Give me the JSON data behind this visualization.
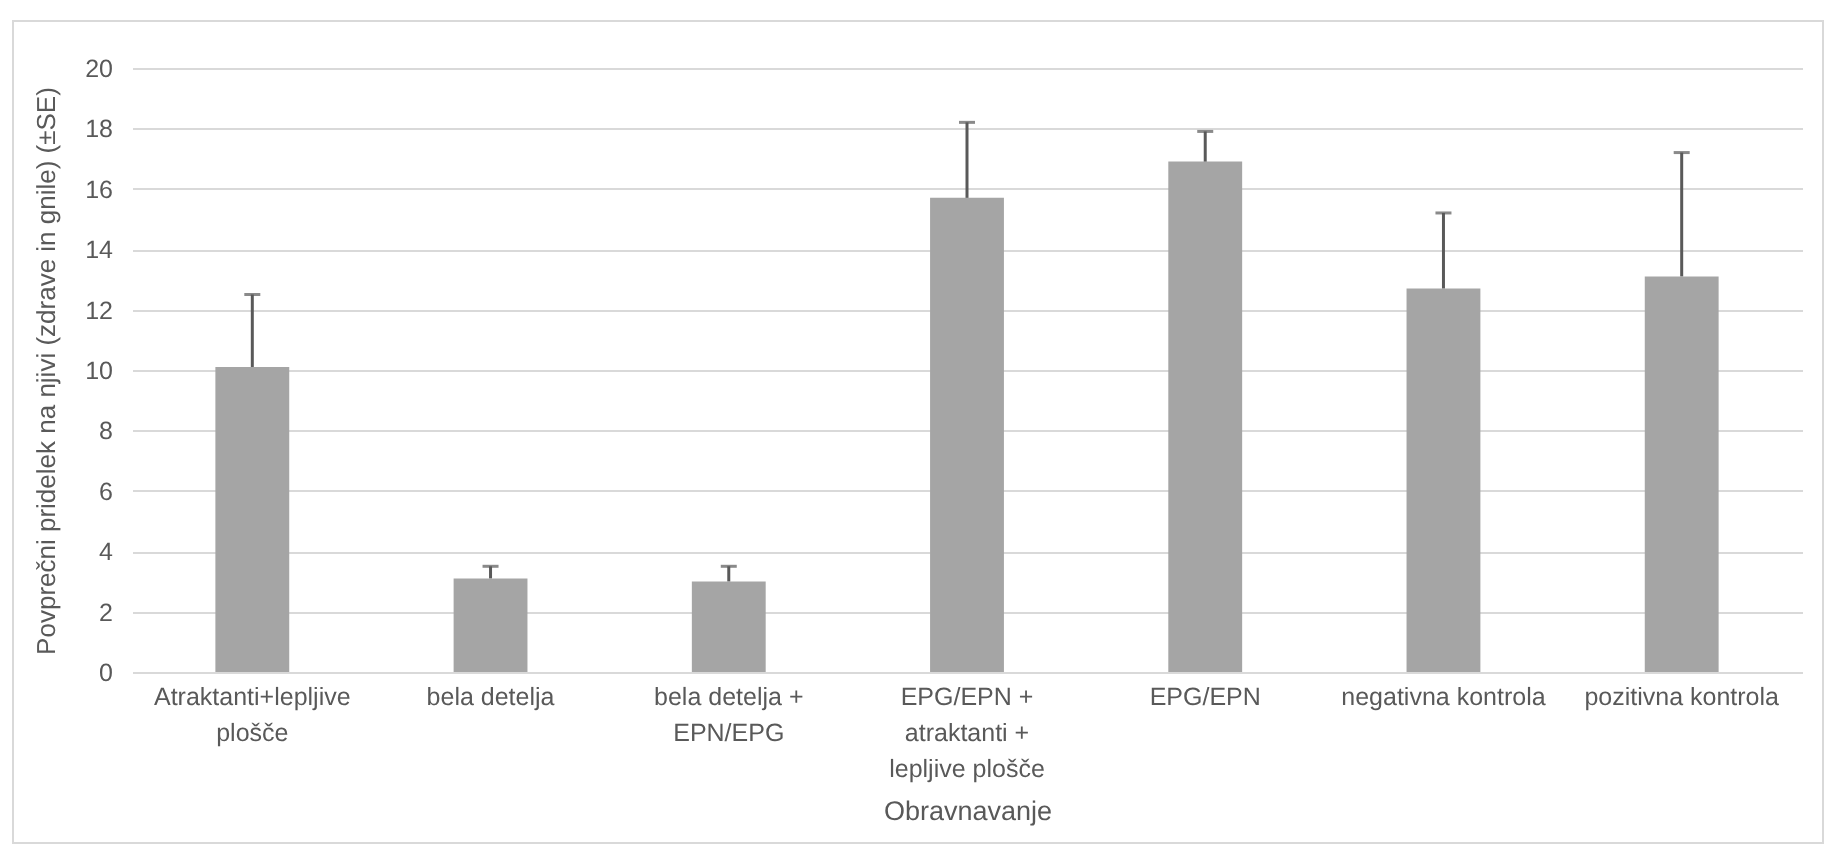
{
  "chart_data": {
    "type": "bar",
    "xlabel": "Obravnavanje",
    "ylabel": "Povprečni pridelek na njivi (zdrave in gnile) (±SE)",
    "categories": [
      "Atraktanti+lepljive plošče",
      "bela detelja",
      "bela detelja + EPN/EPG",
      "EPG/EPN + atraktanti + lepljive plošče",
      "EPG/EPN",
      "negativna kontrola",
      "pozitivna kontrola"
    ],
    "values": [
      10.1,
      3.1,
      3.0,
      15.7,
      16.9,
      12.7,
      13.1
    ],
    "errors": [
      [
        10.1,
        12.5
      ],
      [
        3.1,
        3.5
      ],
      [
        3.0,
        3.5
      ],
      [
        15.7,
        18.2
      ],
      [
        16.9,
        17.9
      ],
      [
        12.7,
        15.2
      ],
      [
        13.1,
        17.2
      ]
    ],
    "color": "#a5a5a5",
    "ylim": [
      0,
      20
    ],
    "yticks": [
      0,
      2,
      4,
      6,
      8,
      10,
      12,
      14,
      16,
      18,
      20
    ],
    "grid": "y"
  }
}
